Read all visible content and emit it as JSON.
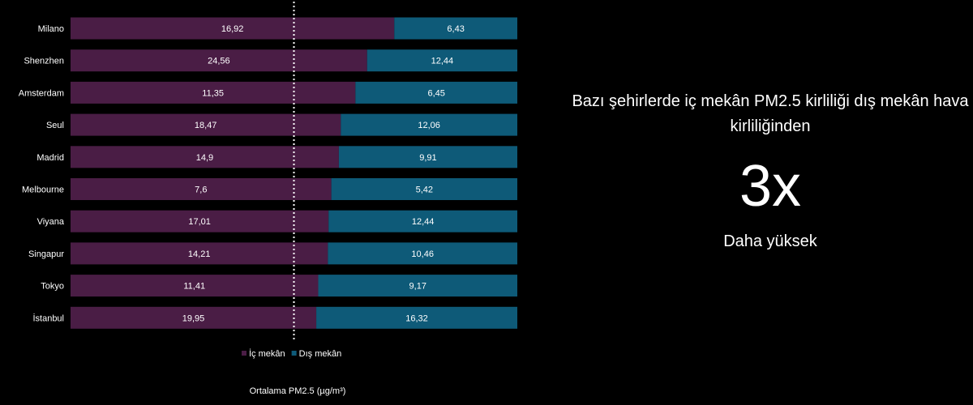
{
  "chart_data": {
    "type": "bar",
    "orientation": "horizontal",
    "stacking": "percent",
    "categories": [
      "Milano",
      "Shenzhen",
      "Amsterdam",
      "Seul",
      "Madrid",
      "Melbourne",
      "Viyana",
      "Singapur",
      "Tokyo",
      "İstanbul"
    ],
    "series": [
      {
        "name": "İç mekân",
        "color": "#4a1d45",
        "values": [
          16.92,
          24.56,
          11.35,
          18.47,
          14.9,
          7.6,
          17.01,
          14.21,
          11.41,
          19.95
        ],
        "labels": [
          "16,92",
          "24,56",
          "11,35",
          "18,47",
          "14,9",
          "7,6",
          "17,01",
          "14,21",
          "11,41",
          "19,95"
        ]
      },
      {
        "name": "Dış mekân",
        "color": "#0e5a78",
        "values": [
          6.43,
          12.44,
          6.45,
          12.06,
          9.91,
          5.42,
          12.44,
          10.46,
          9.17,
          16.32
        ],
        "labels": [
          "6,43",
          "12,44",
          "6,45",
          "12,06",
          "9,91",
          "5,42",
          "12,44",
          "10,46",
          "9,17",
          "16,32"
        ]
      }
    ],
    "reference_line": {
      "value_percent": 50,
      "style": "dotted",
      "color": "#ffffff"
    },
    "xlabel": "Ortalama PM2.5 (µg/m³)",
    "legend": "bottom",
    "grid": false
  },
  "callout": {
    "headline": "Bazı şehirlerde iç mekân PM2.5 kirliliği dış mekân hava kirliliğinden",
    "multiplier": "3x",
    "subtext": "Daha yüksek"
  }
}
